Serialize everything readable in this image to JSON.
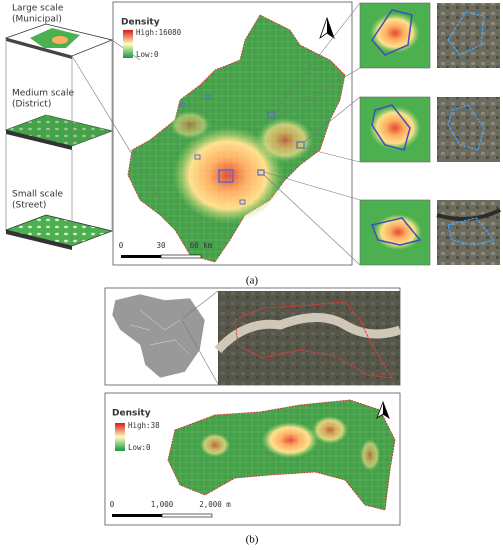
{
  "panel_a": {
    "scales": [
      {
        "lines": [
          "Large scale",
          "(Municipal)"
        ]
      },
      {
        "lines": [
          "Medium scale",
          "(District)"
        ]
      },
      {
        "lines": [
          "Small scale",
          "(Street)"
        ]
      }
    ],
    "legend": {
      "title": "Density",
      "high": "High:16080",
      "low": "Low:0"
    },
    "scale_bar": [
      "0",
      "30",
      "60 km"
    ],
    "caption": "(a)"
  },
  "panel_b": {
    "legend": {
      "title": "Density",
      "high": "High:38",
      "low": "Low:0"
    },
    "scale_bar": [
      "0",
      "1,000",
      "2,000 m"
    ],
    "caption": "(b)"
  }
}
